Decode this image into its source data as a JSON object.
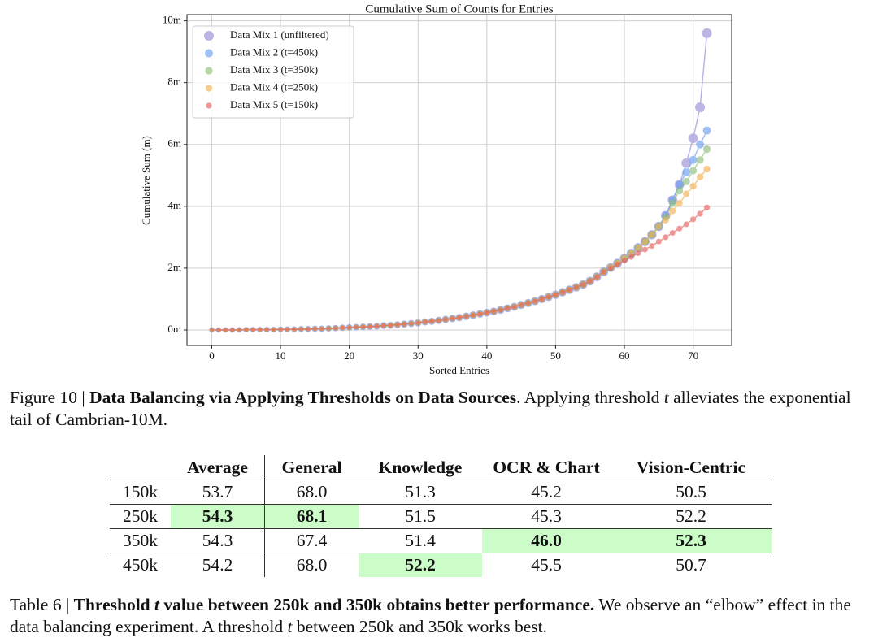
{
  "chart_data": {
    "type": "line",
    "title": "Cumulative Sum of Counts for Entries",
    "x_label": "Sorted Entries",
    "y_label": "Cumulative Sum (m)",
    "x": [
      0,
      1,
      2,
      3,
      4,
      5,
      6,
      7,
      8,
      9,
      10,
      11,
      12,
      13,
      14,
      15,
      16,
      17,
      18,
      19,
      20,
      21,
      22,
      23,
      24,
      25,
      26,
      27,
      28,
      29,
      30,
      31,
      32,
      33,
      34,
      35,
      36,
      37,
      38,
      39,
      40,
      41,
      42,
      43,
      44,
      45,
      46,
      47,
      48,
      49,
      50,
      51,
      52,
      53,
      54,
      55,
      56,
      57,
      58,
      59,
      60,
      61,
      62,
      63,
      64,
      65,
      66,
      67,
      68,
      69,
      70,
      71,
      72
    ],
    "series": [
      {
        "name": "Data Mix 1 (unfiltered)",
        "color": "#9a8ed6",
        "values": [
          0,
          0,
          0,
          0,
          0,
          0.01,
          0.01,
          0.01,
          0.01,
          0.01,
          0.02,
          0.02,
          0.02,
          0.03,
          0.03,
          0.04,
          0.04,
          0.05,
          0.06,
          0.07,
          0.08,
          0.09,
          0.1,
          0.11,
          0.12,
          0.14,
          0.15,
          0.17,
          0.19,
          0.21,
          0.23,
          0.26,
          0.28,
          0.31,
          0.34,
          0.37,
          0.4,
          0.44,
          0.48,
          0.52,
          0.56,
          0.6,
          0.65,
          0.7,
          0.75,
          0.81,
          0.87,
          0.93,
          1,
          1.07,
          1.14,
          1.22,
          1.3,
          1.38,
          1.47,
          1.58,
          1.72,
          1.88,
          2.02,
          2.16,
          2.32,
          2.48,
          2.66,
          2.86,
          3.08,
          3.35,
          3.7,
          4.2,
          4.7,
          5.4,
          6.2,
          7.2,
          9.6
        ]
      },
      {
        "name": "Data Mix 2 (t=450k)",
        "color": "#6b9ff0",
        "values": [
          0,
          0,
          0,
          0,
          0,
          0.01,
          0.01,
          0.01,
          0.01,
          0.01,
          0.02,
          0.02,
          0.02,
          0.03,
          0.03,
          0.04,
          0.04,
          0.05,
          0.06,
          0.07,
          0.08,
          0.09,
          0.1,
          0.11,
          0.12,
          0.14,
          0.15,
          0.17,
          0.19,
          0.21,
          0.23,
          0.26,
          0.28,
          0.31,
          0.34,
          0.37,
          0.4,
          0.44,
          0.48,
          0.52,
          0.56,
          0.6,
          0.65,
          0.7,
          0.75,
          0.81,
          0.87,
          0.93,
          1,
          1.07,
          1.14,
          1.22,
          1.3,
          1.38,
          1.47,
          1.58,
          1.72,
          1.88,
          2.02,
          2.16,
          2.32,
          2.48,
          2.66,
          2.86,
          3.08,
          3.35,
          3.7,
          4.2,
          4.7,
          5.1,
          5.5,
          6.0,
          6.45
        ]
      },
      {
        "name": "Data Mix 3 (t=350k)",
        "color": "#8fc07a",
        "values": [
          0,
          0,
          0,
          0,
          0,
          0.01,
          0.01,
          0.01,
          0.01,
          0.01,
          0.02,
          0.02,
          0.02,
          0.03,
          0.03,
          0.04,
          0.04,
          0.05,
          0.06,
          0.07,
          0.08,
          0.09,
          0.1,
          0.11,
          0.12,
          0.14,
          0.15,
          0.17,
          0.19,
          0.21,
          0.23,
          0.26,
          0.28,
          0.31,
          0.34,
          0.37,
          0.4,
          0.44,
          0.48,
          0.52,
          0.56,
          0.6,
          0.65,
          0.7,
          0.75,
          0.81,
          0.87,
          0.93,
          1,
          1.07,
          1.14,
          1.22,
          1.3,
          1.38,
          1.47,
          1.58,
          1.72,
          1.88,
          2.02,
          2.16,
          2.32,
          2.48,
          2.66,
          2.86,
          3.08,
          3.35,
          3.65,
          4.1,
          4.5,
          4.8,
          5.15,
          5.5,
          5.85
        ]
      },
      {
        "name": "Data Mix 4 (t=250k)",
        "color": "#f2b253",
        "values": [
          0,
          0,
          0,
          0,
          0,
          0.01,
          0.01,
          0.01,
          0.01,
          0.01,
          0.02,
          0.02,
          0.02,
          0.03,
          0.03,
          0.04,
          0.04,
          0.05,
          0.06,
          0.07,
          0.08,
          0.09,
          0.1,
          0.11,
          0.12,
          0.14,
          0.15,
          0.17,
          0.19,
          0.21,
          0.23,
          0.26,
          0.28,
          0.31,
          0.34,
          0.37,
          0.4,
          0.44,
          0.48,
          0.52,
          0.56,
          0.6,
          0.65,
          0.7,
          0.75,
          0.81,
          0.87,
          0.93,
          1,
          1.07,
          1.14,
          1.22,
          1.3,
          1.38,
          1.47,
          1.58,
          1.72,
          1.88,
          2.02,
          2.16,
          2.32,
          2.48,
          2.66,
          2.86,
          3.08,
          3.35,
          3.55,
          3.85,
          4.1,
          4.4,
          4.65,
          4.95,
          5.2
        ]
      },
      {
        "name": "Data Mix 5 (t=150k)",
        "color": "#e8605e",
        "values": [
          0,
          0,
          0,
          0,
          0,
          0.01,
          0.01,
          0.01,
          0.01,
          0.01,
          0.02,
          0.02,
          0.02,
          0.03,
          0.03,
          0.04,
          0.04,
          0.05,
          0.06,
          0.07,
          0.08,
          0.09,
          0.1,
          0.11,
          0.12,
          0.14,
          0.15,
          0.17,
          0.19,
          0.21,
          0.23,
          0.26,
          0.28,
          0.31,
          0.34,
          0.37,
          0.4,
          0.44,
          0.48,
          0.52,
          0.56,
          0.6,
          0.65,
          0.7,
          0.75,
          0.81,
          0.87,
          0.93,
          1,
          1.07,
          1.14,
          1.22,
          1.3,
          1.38,
          1.47,
          1.58,
          1.72,
          1.88,
          2.0,
          2.12,
          2.24,
          2.36,
          2.48,
          2.6,
          2.72,
          2.86,
          3.0,
          3.14,
          3.28,
          3.42,
          3.58,
          3.76,
          3.96
        ]
      }
    ],
    "xlim": [
      -3.6,
      75.6
    ],
    "ylim": [
      -0.5,
      10.2
    ],
    "xticks": [
      0,
      10,
      20,
      30,
      40,
      50,
      60,
      70
    ],
    "yticks": [
      {
        "value": 0,
        "label": "0m"
      },
      {
        "value": 2,
        "label": "2m"
      },
      {
        "value": 4,
        "label": "4m"
      },
      {
        "value": 6,
        "label": "6m"
      },
      {
        "value": 8,
        "label": "8m"
      },
      {
        "value": 10,
        "label": "10m"
      }
    ],
    "grid": true,
    "legend": "upper left"
  },
  "figure_caption": {
    "label": "Figure 10 |",
    "title": "Data Balancing via Applying Thresholds on Data Sources",
    "text_1": ". Applying threshold",
    "var": "t",
    "text_2": "alleviates the exponential tail of Cambrian-10M."
  },
  "table": {
    "header": [
      "Average",
      "General",
      "Knowledge",
      "OCR & Chart",
      "Vision-Centric"
    ],
    "rows": [
      [
        "150k",
        "53.7",
        "68.0",
        "51.3",
        "45.2",
        "50.5"
      ],
      [
        "250k",
        "54.3",
        "68.1",
        "51.5",
        "45.3",
        "52.2"
      ],
      [
        "350k",
        "54.3",
        "67.4",
        "51.4",
        "46.0",
        "52.3"
      ],
      [
        "450k",
        "54.2",
        "68.0",
        "52.2",
        "45.5",
        "50.7"
      ]
    ],
    "highlight": [
      [
        1,
        1
      ],
      [
        1,
        2
      ],
      [
        2,
        4
      ],
      [
        2,
        5
      ],
      [
        3,
        3
      ]
    ]
  },
  "table_caption": {
    "label": "Table 6 |",
    "title_1": "Threshold",
    "var_1": "t",
    "title_2": "value between 250k and 350k obtains better performance.",
    "text_1": "We observe an “elbow” effect in the data balancing experiment. A threshold",
    "var_2": "t",
    "text_2": "between 250k and 350k works best."
  }
}
